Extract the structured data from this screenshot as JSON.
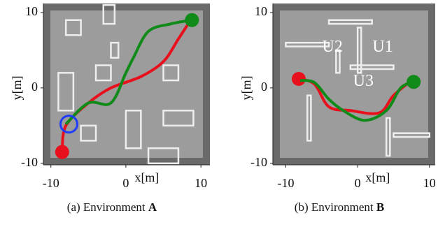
{
  "chart_data": [
    {
      "type": "line",
      "caption": "(a) Environment",
      "caption_bold": "A",
      "xlabel": "x[m]",
      "ylabel": "y[m]",
      "xlim": [
        -11,
        11.2
      ],
      "ylim": [
        -10.2,
        11.2
      ],
      "xticks": [
        -10,
        0,
        10
      ],
      "yticks": [
        -10,
        0,
        10
      ],
      "series": [
        {
          "color": "#e8101c",
          "x": [
            -8.5,
            -8,
            -5,
            -2,
            2,
            5,
            7,
            8.5
          ],
          "values": [
            -8.5,
            -5,
            -2,
            0,
            1.5,
            3.5,
            6.5,
            8.8
          ]
        },
        {
          "color": "#108a18",
          "x": [
            8.8,
            6,
            3,
            1,
            0,
            -2,
            -5,
            -8
          ],
          "values": [
            9,
            8.5,
            7.5,
            4,
            2,
            -2,
            -2,
            -4.8
          ]
        }
      ],
      "highlight": {
        "x": -7.6,
        "y": -4.8,
        "color": "#1e3cff"
      }
    },
    {
      "type": "line",
      "caption": "(b) Environment",
      "caption_bold": "B",
      "xlabel": "x[m]",
      "ylabel": "y[m]",
      "xlim": [
        -11.8,
        10.8
      ],
      "ylim": [
        -10.2,
        11.2
      ],
      "xticks": [
        -10,
        0,
        10
      ],
      "yticks": [
        -10,
        0,
        10
      ],
      "series": [
        {
          "color": "#e8101c",
          "x": [
            -8.2,
            -6,
            -4,
            -1,
            3,
            5,
            7.5
          ],
          "values": [
            1.2,
            0.5,
            -2.5,
            -3,
            -3.3,
            -1,
            1
          ]
        },
        {
          "color": "#108a18",
          "x": [
            7.8,
            6,
            4,
            1,
            -2,
            -4,
            -6,
            -8
          ],
          "values": [
            0.8,
            0,
            -3,
            -4.3,
            -3,
            -1.5,
            0.7,
            1
          ]
        }
      ],
      "annotations": [
        "U2",
        "U1",
        "U3"
      ]
    }
  ]
}
